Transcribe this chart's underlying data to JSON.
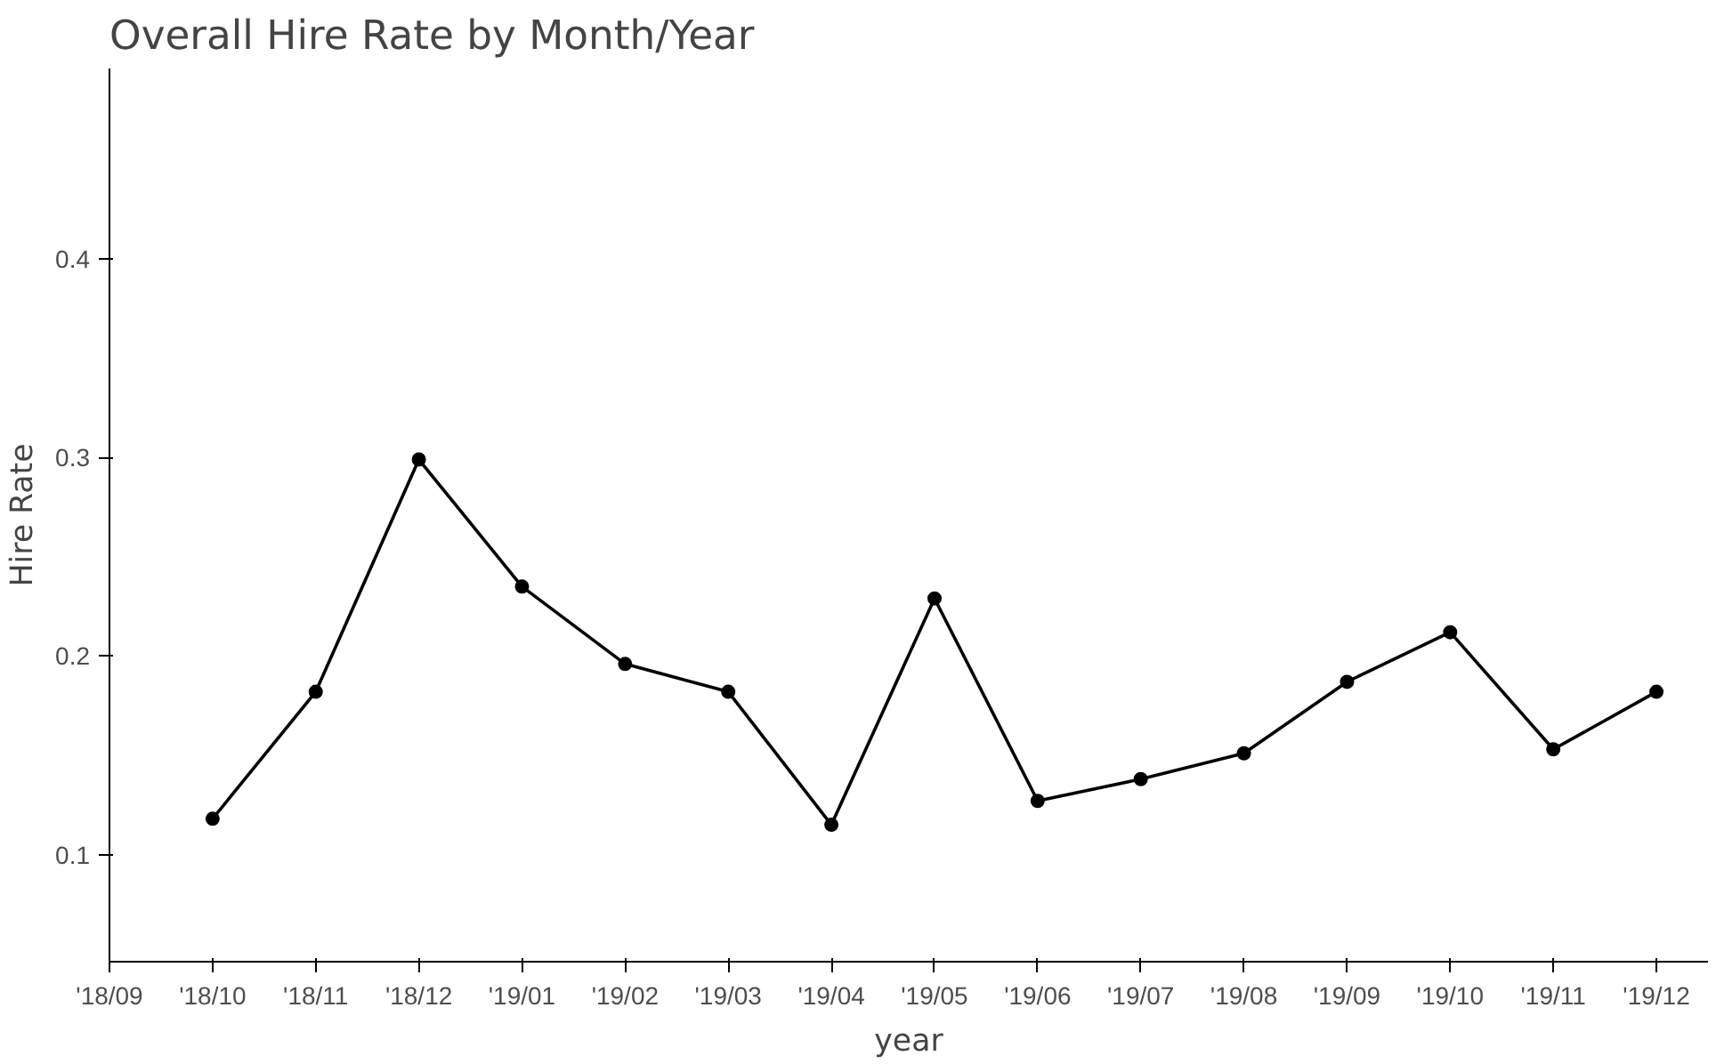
{
  "chart_data": {
    "type": "line",
    "title": "Overall Hire Rate by Month/Year",
    "xlabel": "year",
    "ylabel": "Hire Rate",
    "categories": [
      "'18/09",
      "'18/10",
      "'18/11",
      "'18/12",
      "'19/01",
      "'19/02",
      "'19/03",
      "'19/04",
      "'19/05",
      "'19/06",
      "'19/07",
      "'19/08",
      "'19/09",
      "'19/10",
      "'19/11",
      "'19/12"
    ],
    "series": [
      {
        "color": "#000000",
        "values": [
          null,
          0.118,
          0.182,
          0.299,
          0.235,
          0.196,
          0.182,
          0.115,
          0.229,
          0.127,
          0.138,
          0.151,
          0.187,
          0.212,
          0.153,
          0.182
        ]
      }
    ],
    "ylim": [
      0.046,
      0.496
    ],
    "yticks": [
      0.1,
      0.2,
      0.3,
      0.4
    ],
    "grid": false,
    "marker": "circle",
    "line_style": "solid"
  }
}
